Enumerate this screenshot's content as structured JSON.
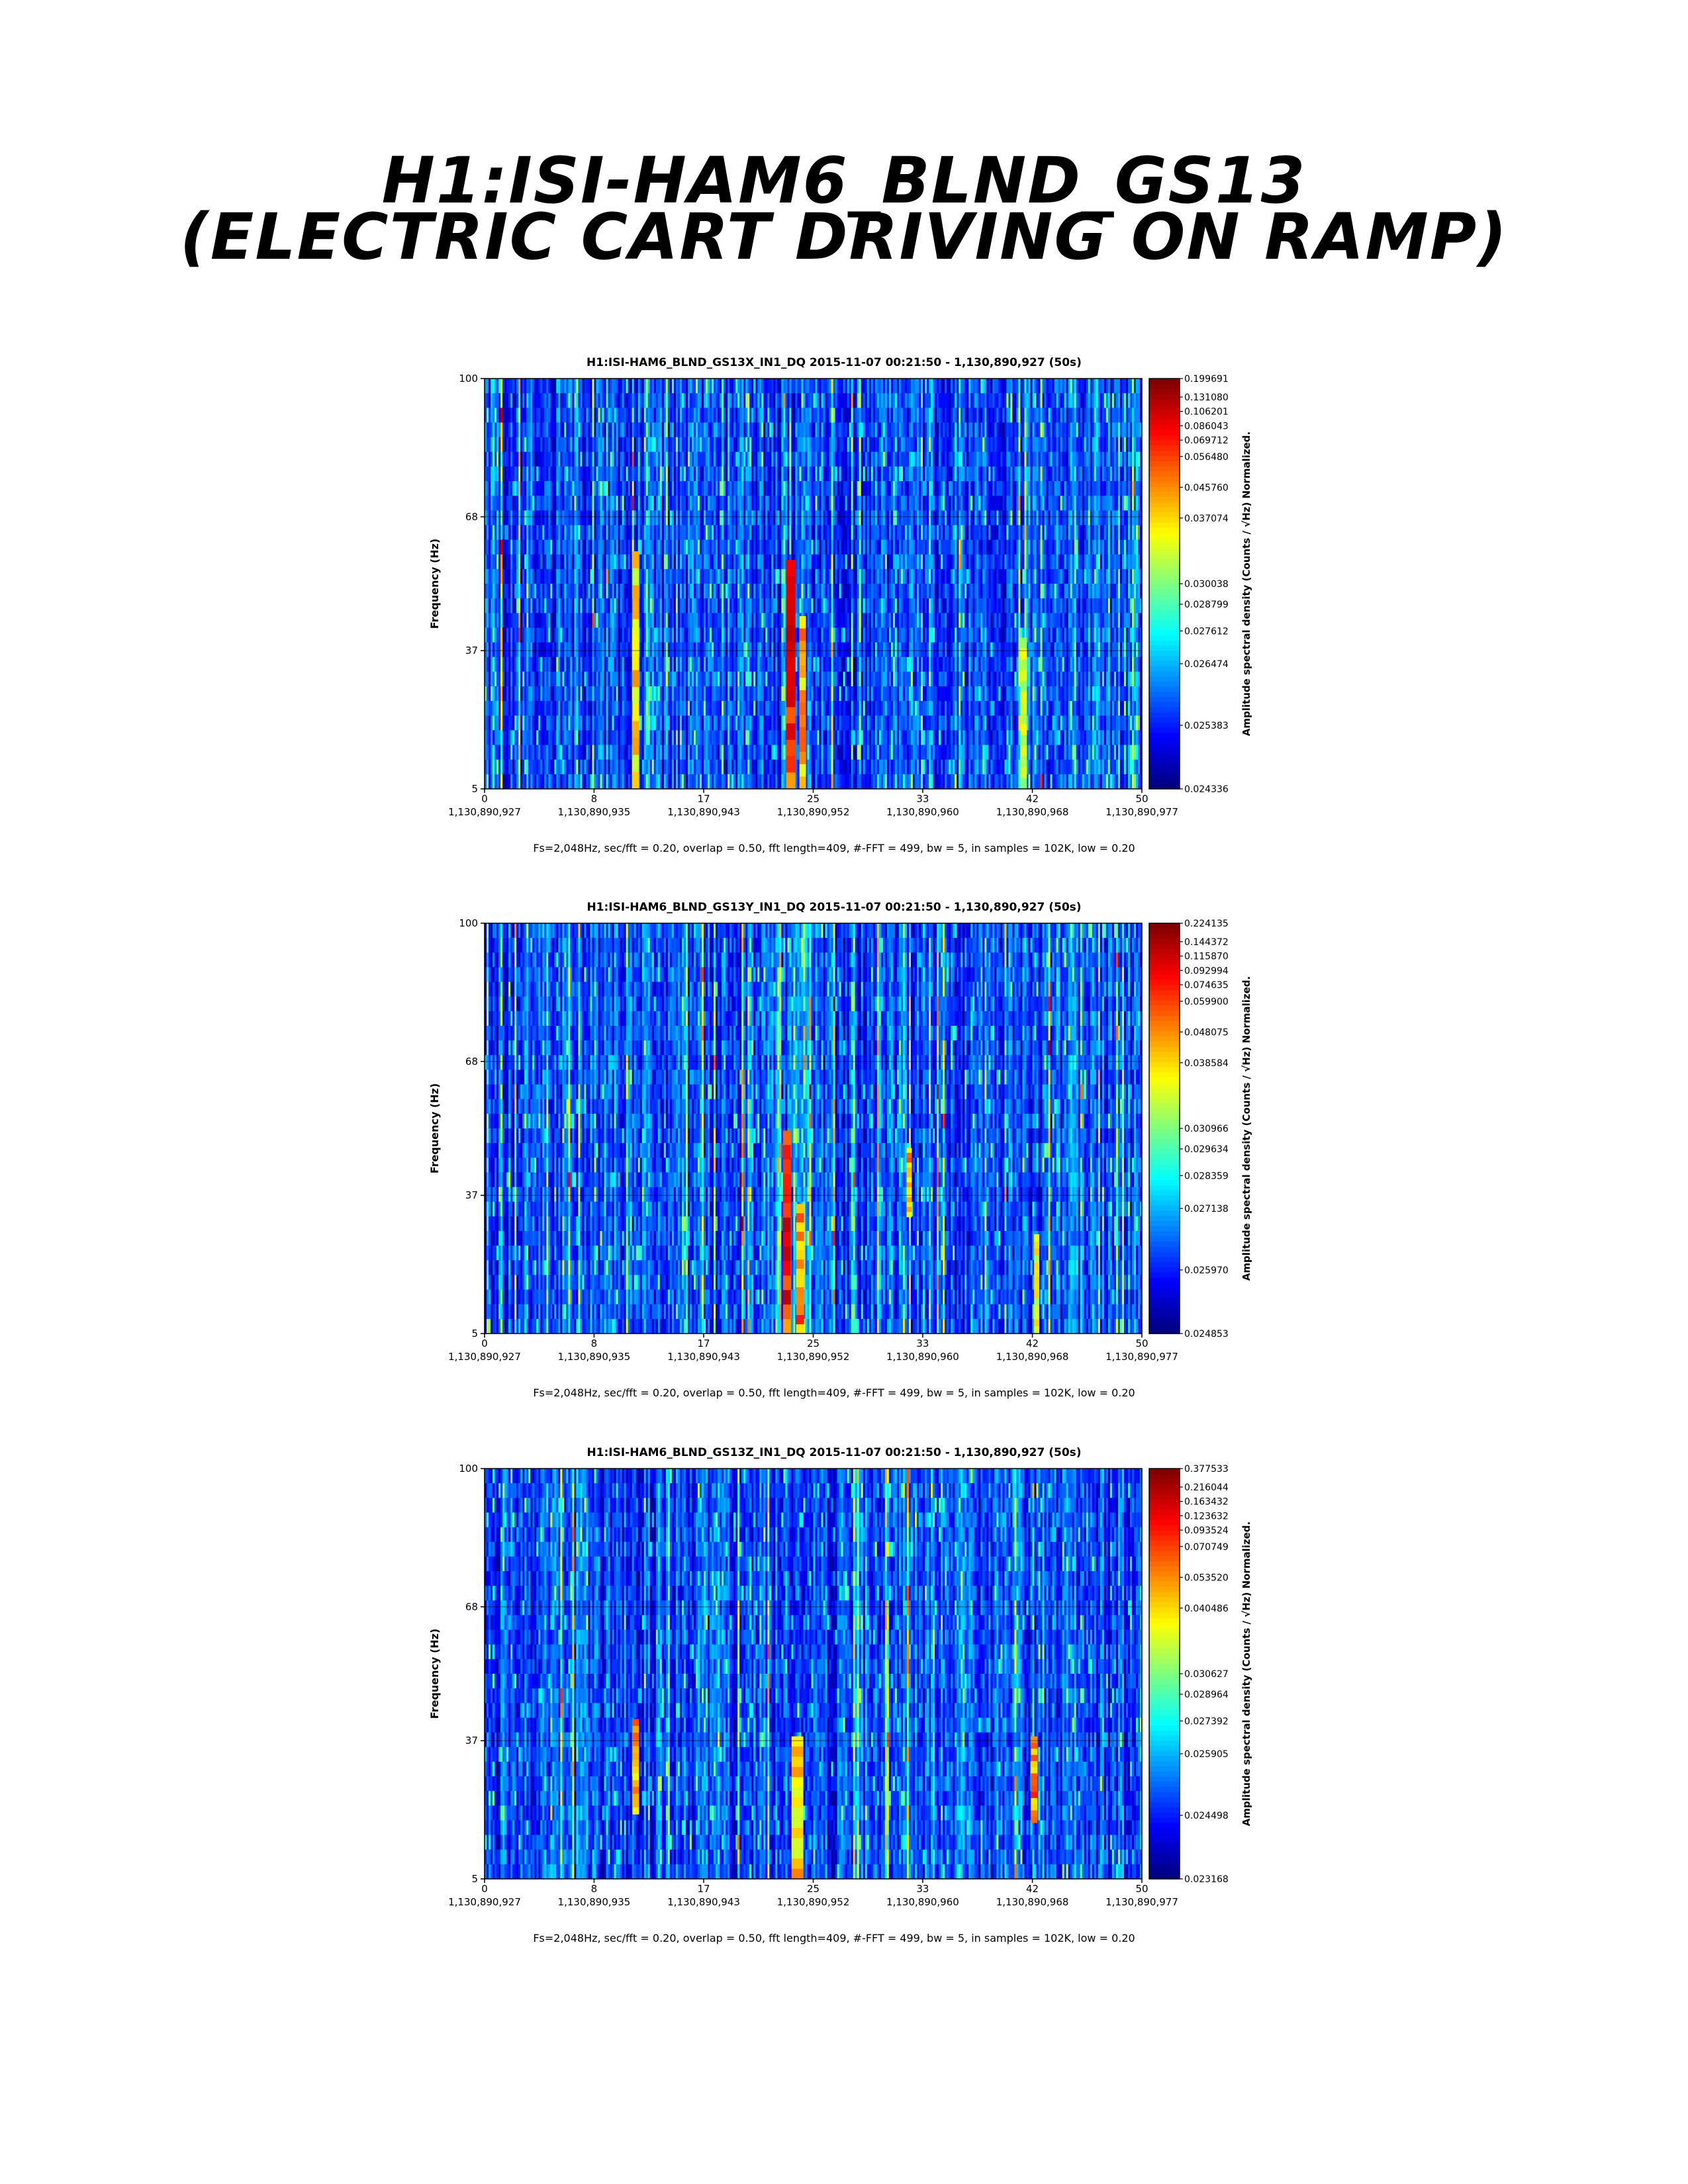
{
  "page_title": {
    "line1": "H1:ISI-HAM6_BLND_GS13",
    "line2": "(Electric cart driving on ramp)"
  },
  "colormap": "jet",
  "chart_data": [
    {
      "type": "heatmap",
      "title": "H1:ISI-HAM6_BLND_GS13X_IN1_DQ 2015-11-07 00:21:50 - 1,130,890,927 (50s)",
      "ylabel": "Frequency (Hz)",
      "colorbar_label": "Amplitude spectral density (Counts / √Hz) Normalized.",
      "footer": "Fs=2,048Hz, sec/fft = 0.20, overlap = 0.50, fft length=409, #-FFT = 499, bw = 5, in samples = 102K, low = 0.20",
      "xlim": [
        0,
        50
      ],
      "ylim": [
        5,
        100
      ],
      "x_ticks": [
        {
          "value": 0,
          "label": "0",
          "gps": "1,130,890,927"
        },
        {
          "value": 8.33,
          "label": "8",
          "gps": "1,130,890,935"
        },
        {
          "value": 16.67,
          "label": "17",
          "gps": "1,130,890,943"
        },
        {
          "value": 25,
          "label": "25",
          "gps": "1,130,890,952"
        },
        {
          "value": 33.33,
          "label": "33",
          "gps": "1,130,890,960"
        },
        {
          "value": 41.67,
          "label": "42",
          "gps": "1,130,890,968"
        },
        {
          "value": 50,
          "label": "50",
          "gps": "1,130,890,977"
        }
      ],
      "y_ticks": [
        5,
        37,
        68,
        100
      ],
      "grid": true,
      "colorbar_ticks": [
        "0.024336",
        "0.025383",
        "0.026474",
        "0.027612",
        "0.028799",
        "0.030038",
        "0.037074",
        "0.045760",
        "0.056480",
        "0.069712",
        "0.086043",
        "0.106201",
        "0.131080",
        "0.199691"
      ],
      "features": [
        {
          "x_center": 11.5,
          "width": 0.5,
          "y_bottom": 5,
          "y_top": 60,
          "strength": 0.75
        },
        {
          "x_center": 23.3,
          "width": 0.7,
          "y_bottom": 5,
          "y_top": 58,
          "strength": 0.95
        },
        {
          "x_center": 24.2,
          "width": 0.5,
          "y_bottom": 5,
          "y_top": 45,
          "strength": 0.8
        },
        {
          "x_center": 41.0,
          "width": 0.5,
          "y_bottom": 5,
          "y_top": 40,
          "strength": 0.65
        }
      ]
    },
    {
      "type": "heatmap",
      "title": "H1:ISI-HAM6_BLND_GS13Y_IN1_DQ 2015-11-07 00:21:50 - 1,130,890,927 (50s)",
      "ylabel": "Frequency (Hz)",
      "colorbar_label": "Amplitude spectral density (Counts / √Hz) Normalized.",
      "footer": "Fs=2,048Hz, sec/fft = 0.20, overlap = 0.50, fft length=409, #-FFT = 499, bw = 5, in samples = 102K, low = 0.20",
      "xlim": [
        0,
        50
      ],
      "ylim": [
        5,
        100
      ],
      "x_ticks": [
        {
          "value": 0,
          "label": "0",
          "gps": "1,130,890,927"
        },
        {
          "value": 8.33,
          "label": "8",
          "gps": "1,130,890,935"
        },
        {
          "value": 16.67,
          "label": "17",
          "gps": "1,130,890,943"
        },
        {
          "value": 25,
          "label": "25",
          "gps": "1,130,890,952"
        },
        {
          "value": 33.33,
          "label": "33",
          "gps": "1,130,890,960"
        },
        {
          "value": 41.67,
          "label": "42",
          "gps": "1,130,890,968"
        },
        {
          "value": 50,
          "label": "50",
          "gps": "1,130,890,977"
        }
      ],
      "y_ticks": [
        5,
        37,
        68,
        100
      ],
      "grid": true,
      "colorbar_ticks": [
        "0.024853",
        "0.025970",
        "0.027138",
        "0.028359",
        "0.029634",
        "0.030966",
        "0.038584",
        "0.048075",
        "0.059900",
        "0.074635",
        "0.092994",
        "0.115870",
        "0.144372",
        "0.224135"
      ],
      "features": [
        {
          "x_center": 23.0,
          "width": 0.6,
          "y_bottom": 5,
          "y_top": 52,
          "strength": 0.95
        },
        {
          "x_center": 24.0,
          "width": 0.6,
          "y_bottom": 5,
          "y_top": 35,
          "strength": 0.85
        },
        {
          "x_center": 32.3,
          "width": 0.4,
          "y_bottom": 32,
          "y_top": 48,
          "strength": 0.8
        },
        {
          "x_center": 42.0,
          "width": 0.4,
          "y_bottom": 5,
          "y_top": 28,
          "strength": 0.7
        }
      ]
    },
    {
      "type": "heatmap",
      "title": "H1:ISI-HAM6_BLND_GS13Z_IN1_DQ 2015-11-07 00:21:50 - 1,130,890,927 (50s)",
      "ylabel": "Frequency (Hz)",
      "colorbar_label": "Amplitude spectral density (Counts / √Hz) Normalized.",
      "footer": "Fs=2,048Hz, sec/fft = 0.20, overlap = 0.50, fft length=409, #-FFT = 499, bw = 5, in samples = 102K, low = 0.20",
      "xlim": [
        0,
        50
      ],
      "ylim": [
        5,
        100
      ],
      "x_ticks": [
        {
          "value": 0,
          "label": "0",
          "gps": "1,130,890,927"
        },
        {
          "value": 8.33,
          "label": "8",
          "gps": "1,130,890,935"
        },
        {
          "value": 16.67,
          "label": "17",
          "gps": "1,130,890,943"
        },
        {
          "value": 25,
          "label": "25",
          "gps": "1,130,890,952"
        },
        {
          "value": 33.33,
          "label": "33",
          "gps": "1,130,890,960"
        },
        {
          "value": 41.67,
          "label": "42",
          "gps": "1,130,890,968"
        },
        {
          "value": 50,
          "label": "50",
          "gps": "1,130,890,977"
        }
      ],
      "y_ticks": [
        5,
        37,
        68,
        100
      ],
      "grid": true,
      "colorbar_ticks": [
        "0.023168",
        "0.024498",
        "0.025905",
        "0.027392",
        "0.028964",
        "0.030627",
        "0.040486",
        "0.053520",
        "0.070749",
        "0.093524",
        "0.123632",
        "0.163432",
        "0.216044",
        "0.377533"
      ],
      "features": [
        {
          "x_center": 11.5,
          "width": 0.5,
          "y_bottom": 20,
          "y_top": 42,
          "strength": 0.8
        },
        {
          "x_center": 23.8,
          "width": 0.9,
          "y_bottom": 5,
          "y_top": 38,
          "strength": 0.75
        },
        {
          "x_center": 41.8,
          "width": 0.5,
          "y_bottom": 18,
          "y_top": 38,
          "strength": 0.85
        }
      ]
    }
  ]
}
